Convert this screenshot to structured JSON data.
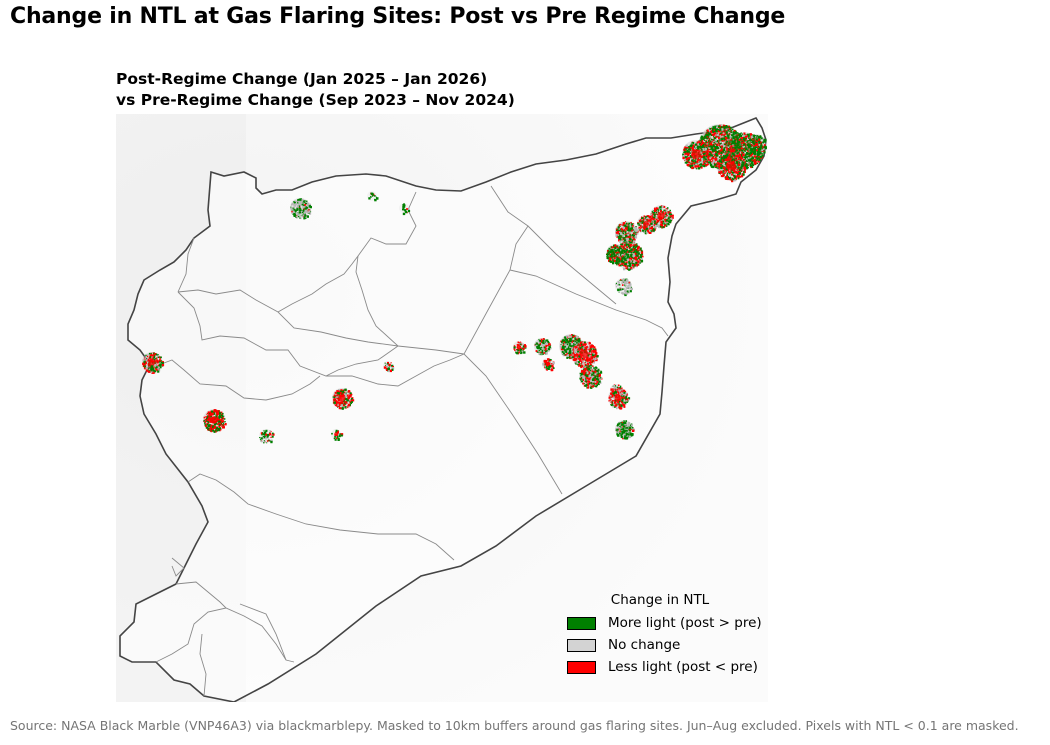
{
  "figure": {
    "title": "Change in NTL at Gas Flaring Sites: Post vs Pre Regime Change",
    "subtitle_line1": "Post-Regime Change (Jan 2025 – Jan 2026)",
    "subtitle_line2": "vs Pre-Regime Change (Sep 2023 – Nov 2024)",
    "source": "Source: NASA Black Marble (VNP46A3) via blackmarblepy. Masked to 10km buffers around gas flaring sites. Jun–Aug excluded. Pixels with NTL < 0.1 are masked."
  },
  "legend": {
    "title": "Change in NTL",
    "items": [
      {
        "label": "More light (post > pre)",
        "color": "#008000"
      },
      {
        "label": "No change",
        "color": "#d3d3d3"
      },
      {
        "label": "Less light (post < pre)",
        "color": "#ff0000"
      }
    ]
  },
  "colors": {
    "more": "#008000",
    "nochange": "#b8b8b8",
    "less": "#ff0000",
    "border": "#444444",
    "admin": "#8a8a8a"
  }
}
